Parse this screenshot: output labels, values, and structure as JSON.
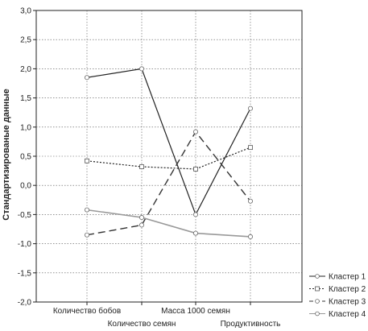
{
  "chart_data": {
    "type": "line",
    "title": "",
    "xlabel": "",
    "ylabel": "Стандартизированые данные",
    "categories": [
      "Количество бобов",
      "Количество семян",
      "Масса 1000 семян",
      "Продуктивность"
    ],
    "ylim": [
      -2.0,
      3.0
    ],
    "yticks": [
      "3,0",
      "2,5",
      "2,0",
      "1,5",
      "1,0",
      "0,5",
      "0,0",
      "-0,5",
      "-1,0",
      "-1,5",
      "-2,0"
    ],
    "grid": true,
    "legend_position": "bottom-right",
    "series": [
      {
        "name": "Кластер  1",
        "values": [
          1.85,
          2.0,
          -0.5,
          1.32
        ],
        "style": "solid",
        "color": "#222222"
      },
      {
        "name": "Кластер  2",
        "values": [
          0.42,
          0.32,
          0.28,
          0.65
        ],
        "style": "dotted",
        "color": "#222222"
      },
      {
        "name": "Кластер  3",
        "values": [
          -0.85,
          -0.68,
          0.92,
          -0.27
        ],
        "style": "dashed",
        "color": "#333333"
      },
      {
        "name": "Кластер  4",
        "values": [
          -0.42,
          -0.55,
          -0.82,
          -0.88
        ],
        "style": "solid",
        "color": "#999999"
      }
    ]
  }
}
